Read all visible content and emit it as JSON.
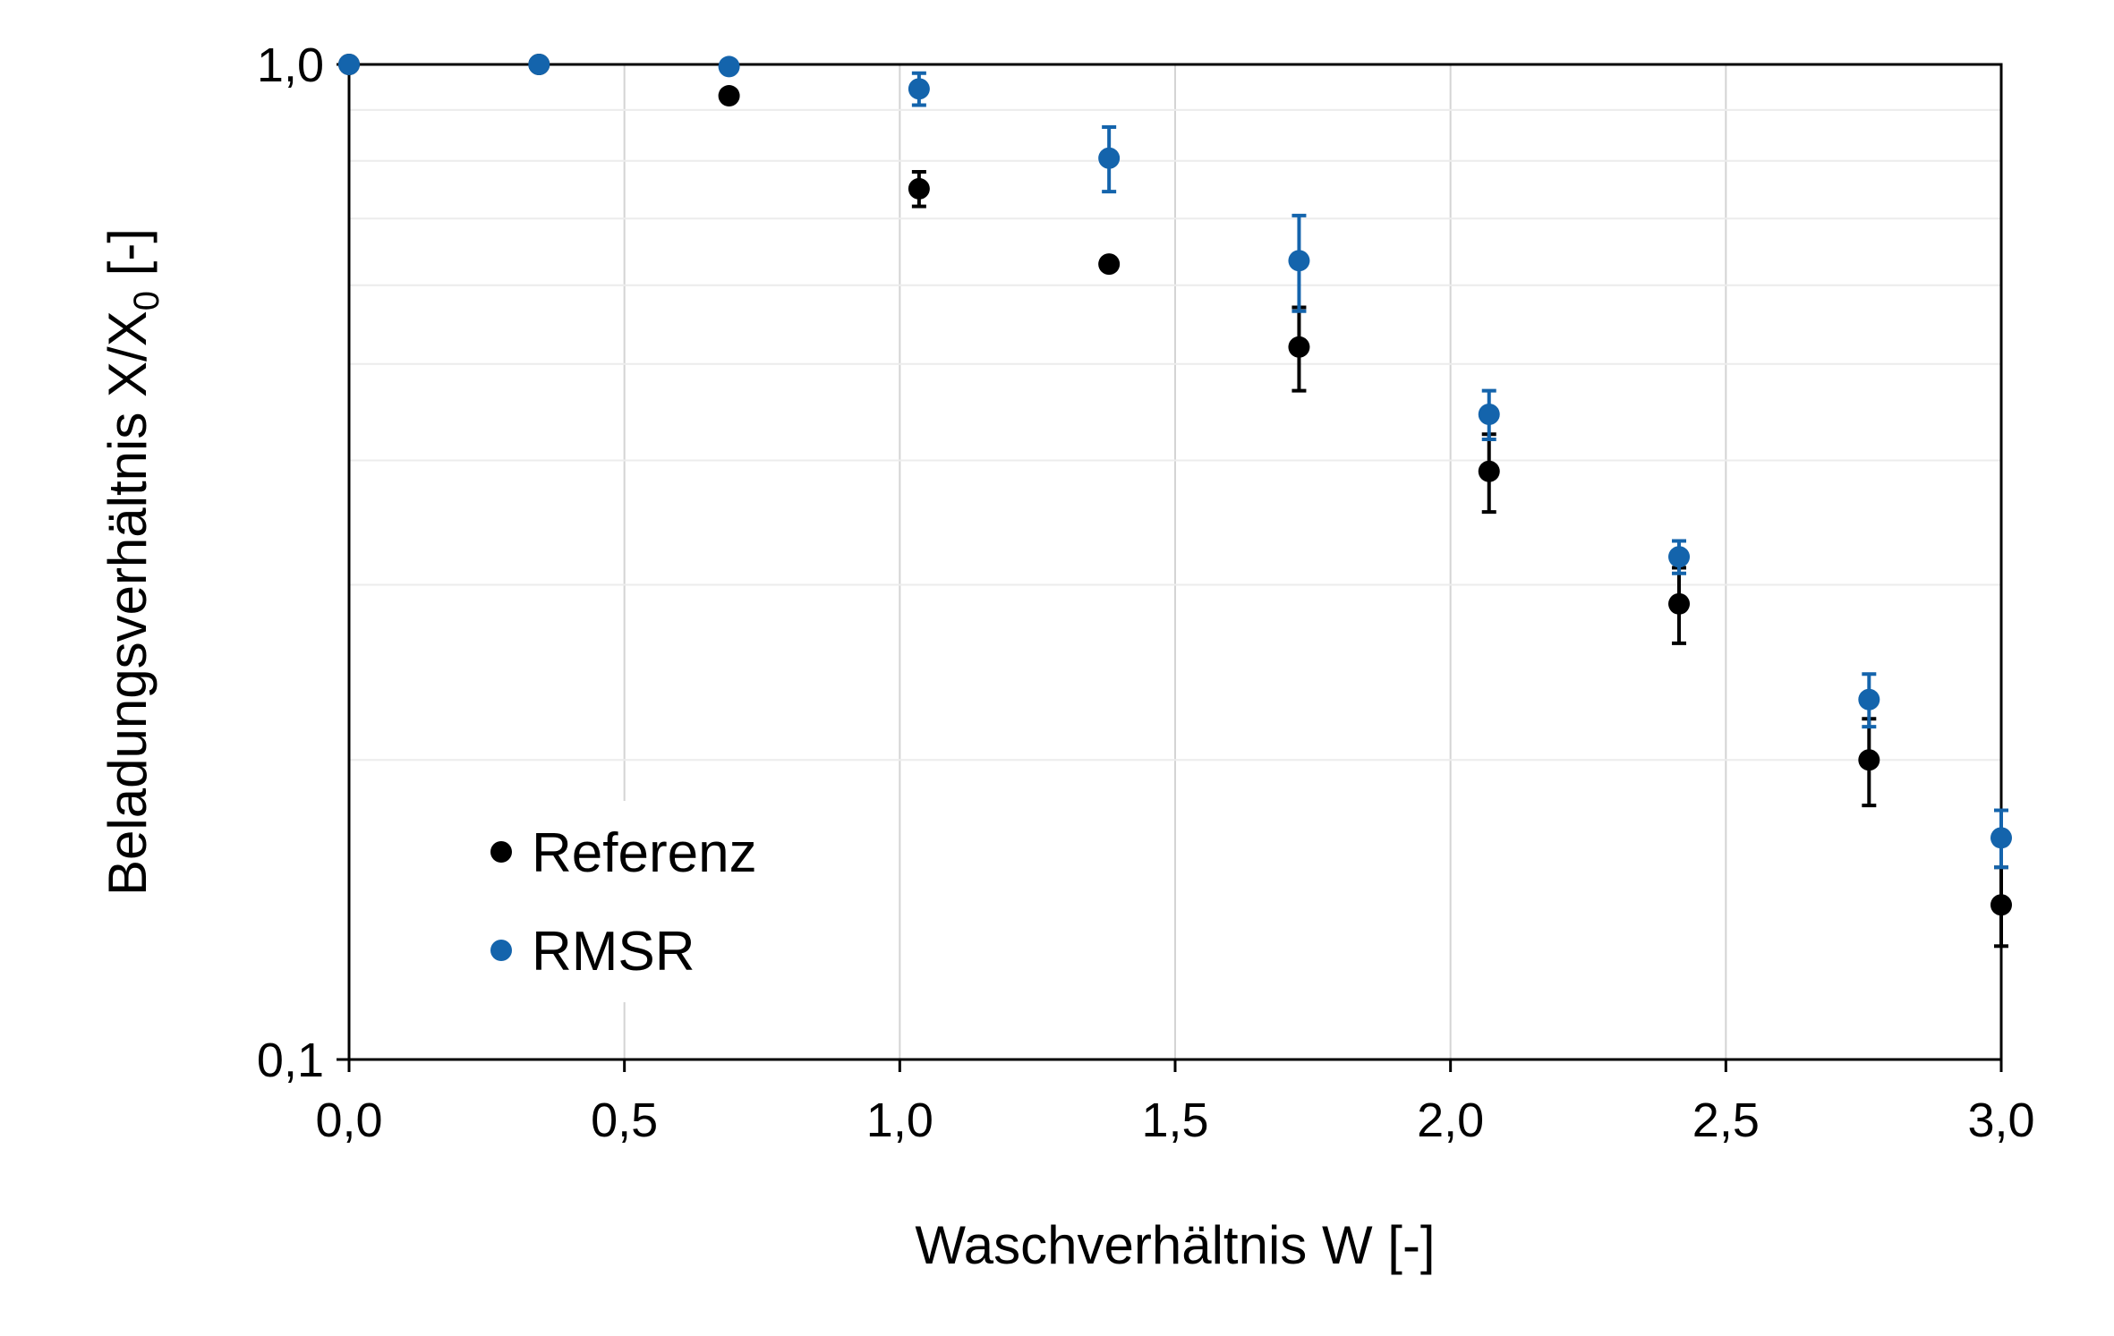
{
  "chart_data": {
    "type": "scatter",
    "xlabel": "Waschverhältnis W [-]",
    "ylabel": {
      "main": "Beladungsverhältnis X/X",
      "subscript": "0",
      "suffix": " [-]"
    },
    "xlim": [
      0,
      3
    ],
    "ylim": [
      0.1,
      1.0
    ],
    "y_scale": "log",
    "x_ticks": [
      "0,0",
      "0,5",
      "1,0",
      "1,5",
      "2,0",
      "2,5",
      "3,0"
    ],
    "x_tick_values": [
      0,
      0.5,
      1.0,
      1.5,
      2.0,
      2.5,
      3.0
    ],
    "y_ticks": [
      "1,0",
      "0,1"
    ],
    "y_tick_values": [
      1.0,
      0.1
    ],
    "grid": true,
    "legend_position": "bottom-left",
    "series": [
      {
        "name": "Referenz",
        "color": "#000000",
        "x": [
          0.0,
          0.345,
          0.69,
          1.035,
          1.38,
          1.725,
          2.07,
          2.415,
          2.76,
          3.0
        ],
        "y": [
          1.0,
          1.0,
          0.93,
          0.75,
          0.63,
          0.52,
          0.39,
          0.287,
          0.2,
          0.143
        ],
        "err": [
          0,
          0,
          0,
          0.03,
          0,
          0.05,
          0.035,
          0.025,
          0.02,
          0.013
        ]
      },
      {
        "name": "RMSR",
        "color": "#1464ac",
        "x": [
          0.0,
          0.345,
          0.69,
          1.035,
          1.38,
          1.725,
          2.07,
          2.415,
          2.76,
          3.0
        ],
        "y": [
          1.0,
          1.0,
          0.995,
          0.945,
          0.805,
          0.635,
          0.445,
          0.32,
          0.23,
          0.167
        ],
        "err": [
          0,
          0,
          0,
          0.035,
          0.06,
          0.07,
          0.025,
          0.012,
          0.014,
          0.011
        ]
      }
    ]
  }
}
